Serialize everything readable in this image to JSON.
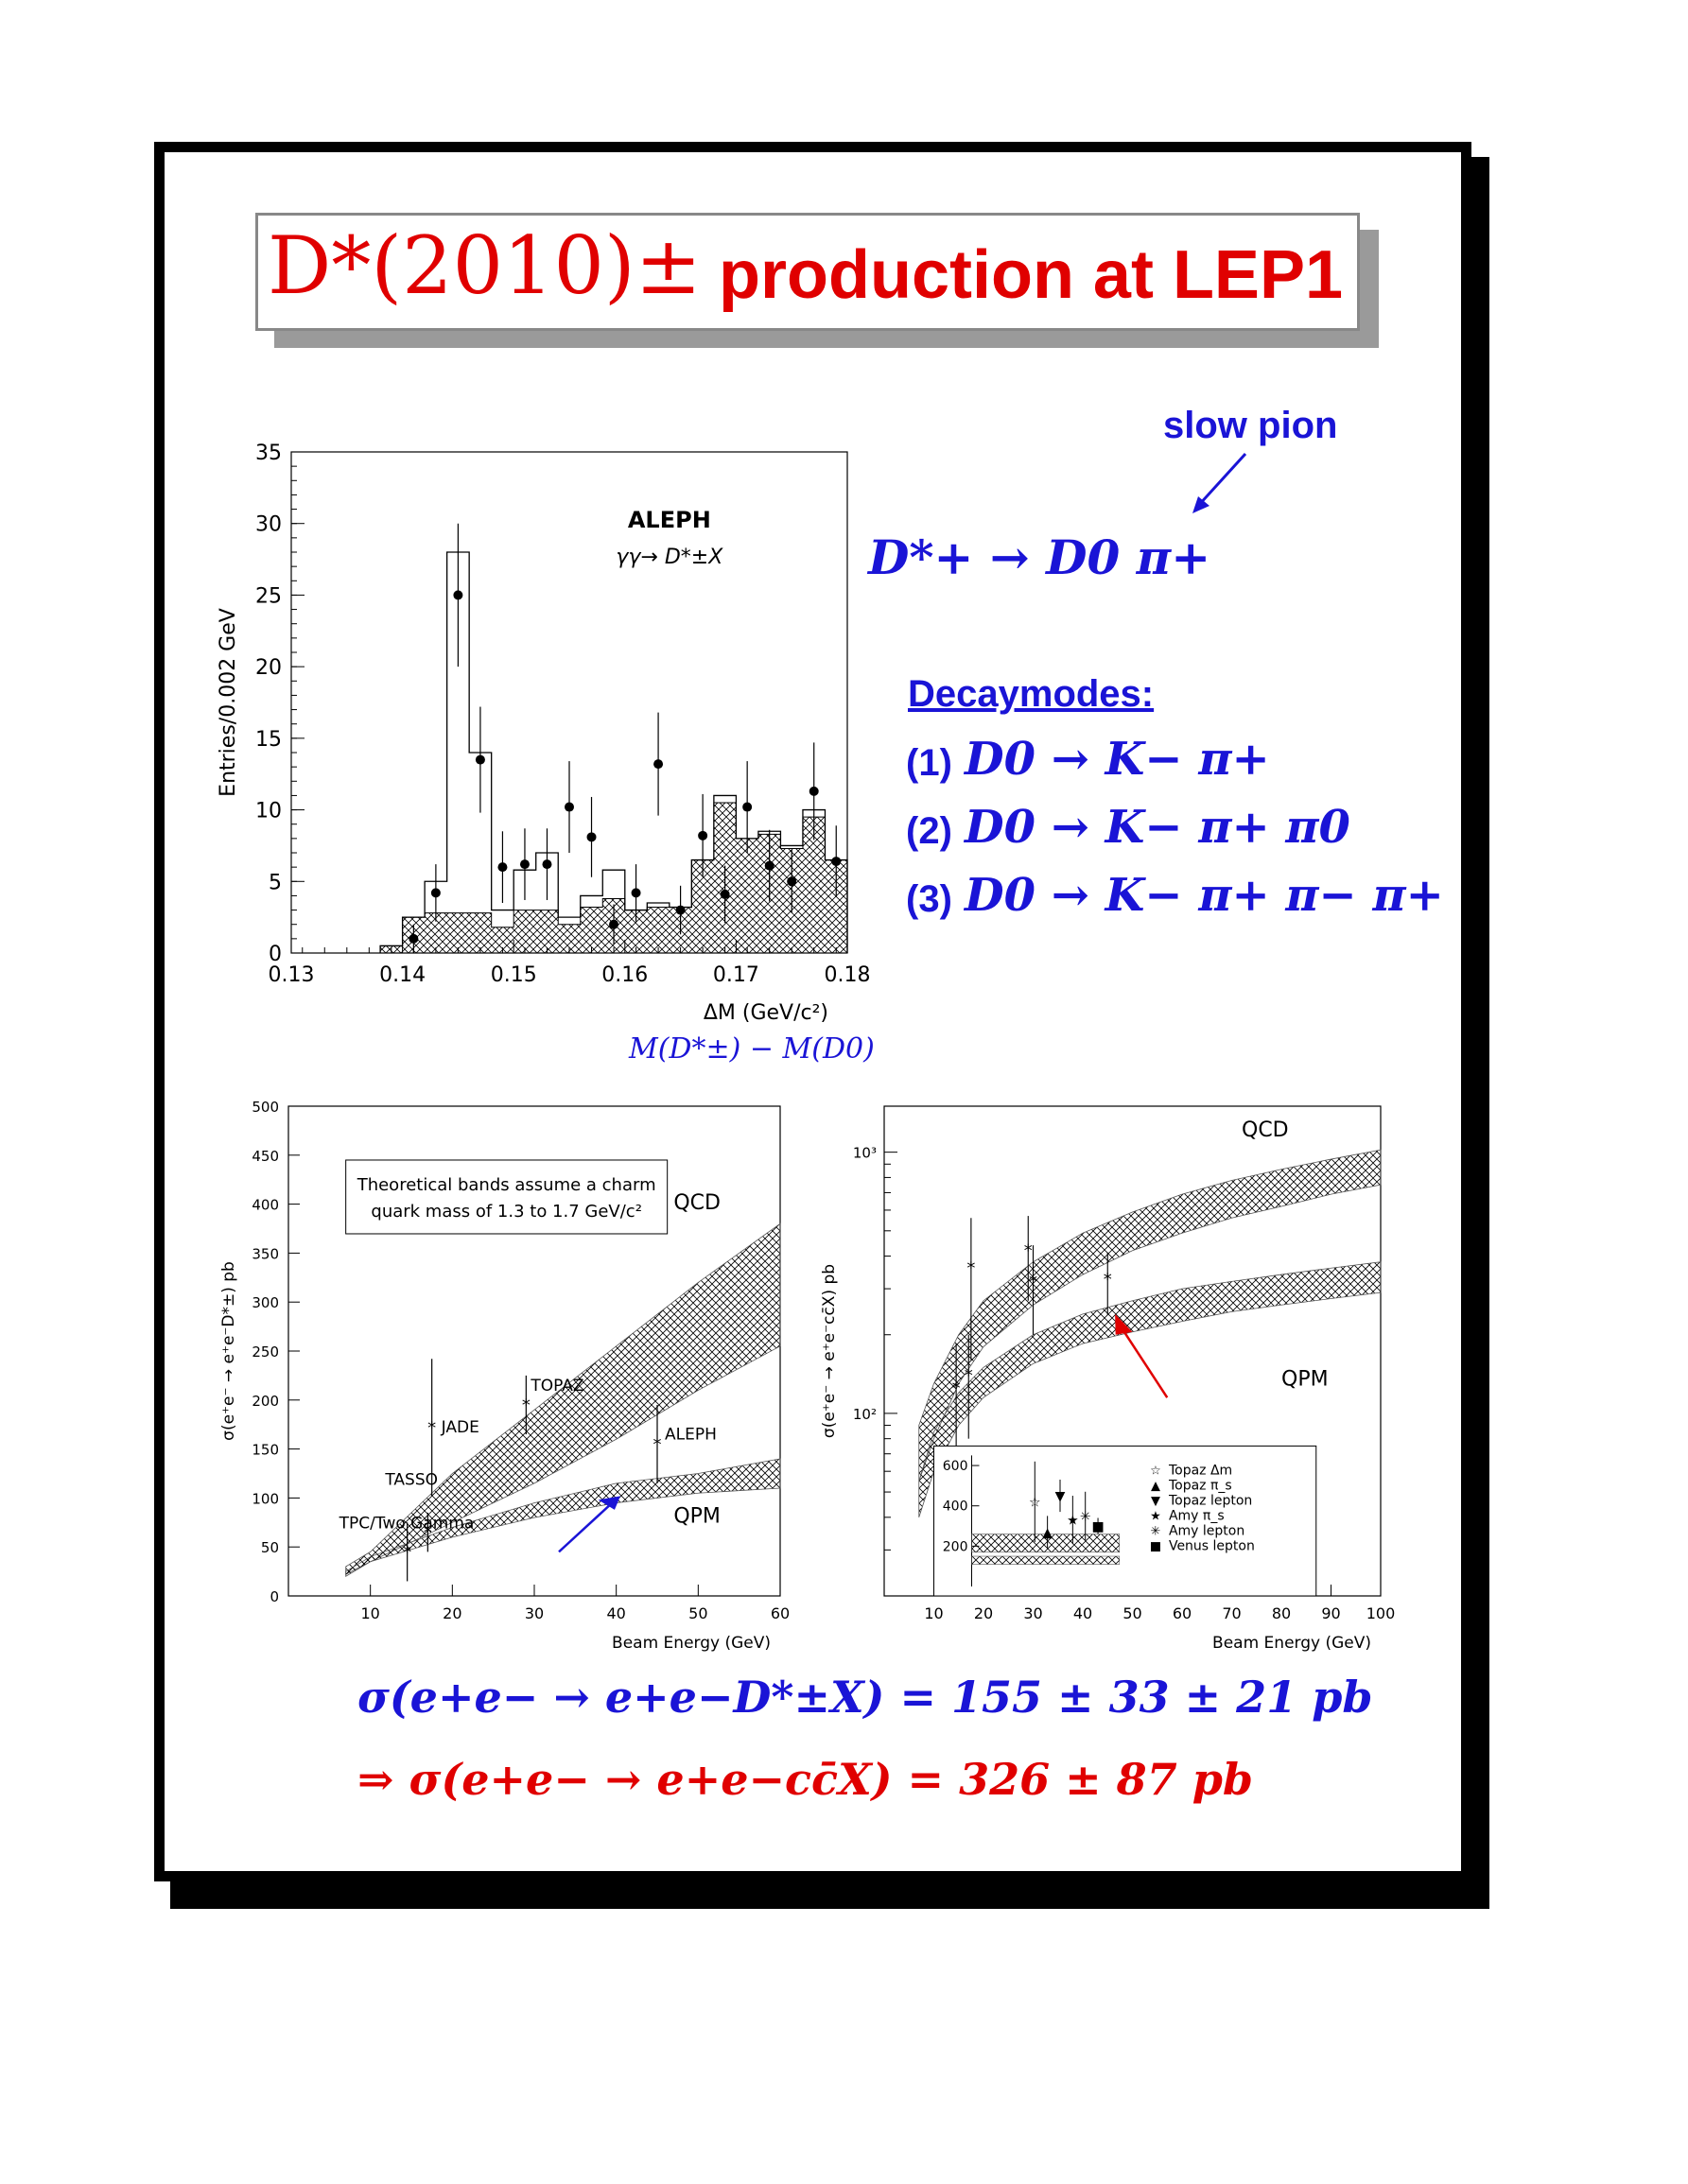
{
  "title": {
    "math": "D*(2010)±",
    "text": "production at LEP1"
  },
  "decay": {
    "slow_pion_label": "slow pion",
    "main_decay": "D*+ → D0 π+",
    "decaymodes_heading": "Decaymodes:",
    "modes": [
      {
        "num": "(1)",
        "expr": "D0 → K− π+"
      },
      {
        "num": "(2)",
        "expr": "D0 → K− π+ π0"
      },
      {
        "num": "(3)",
        "expr": "D0 → K− π+ π− π+"
      }
    ],
    "delta_m_formula": "M(D*±) − M(D0)"
  },
  "results": {
    "line1": "σ(e+e− → e+e−D*±X) = 155 ± 33 ± 21 pb",
    "line2": "⇒  σ(e+e− → e+e−cc̄X) = 326 ± 87 pb"
  },
  "colors": {
    "accent_red": "#e00000",
    "accent_blue": "#1a14d6"
  },
  "chart_data": [
    {
      "type": "bar",
      "title": "ALEPH",
      "subtitle": "γγ→ D*±X",
      "xlabel": "ΔM (GeV/c²)",
      "ylabel": "Entries/0.002 GeV",
      "xlim": [
        0.13,
        0.18
      ],
      "ylim": [
        0,
        35
      ],
      "xticks": [
        0.13,
        0.14,
        0.15,
        0.16,
        0.17,
        0.18
      ],
      "yticks": [
        0,
        5,
        10,
        15,
        20,
        25,
        30,
        35
      ],
      "bin_edges": [
        0.138,
        0.14,
        0.142,
        0.144,
        0.146,
        0.148,
        0.15,
        0.152,
        0.154,
        0.156,
        0.158,
        0.16,
        0.162,
        0.164,
        0.166,
        0.168,
        0.17,
        0.172,
        0.174,
        0.176,
        0.178,
        0.18
      ],
      "series": [
        {
          "style": "open histogram",
          "values": [
            0.5,
            2.5,
            5,
            28,
            14,
            3,
            5.8,
            7,
            2.5,
            4,
            5.8,
            3,
            3.5,
            3.2,
            6.5,
            11,
            8,
            8.5,
            7.5,
            10,
            6.5
          ]
        },
        {
          "style": "hatched histogram",
          "values": [
            0.5,
            2.5,
            2.8,
            2.8,
            2.8,
            1.8,
            3,
            3,
            2,
            3.2,
            3.8,
            3,
            3.2,
            3.2,
            6.5,
            10.5,
            8,
            8.3,
            7.3,
            9.5,
            6.5
          ]
        },
        {
          "style": "data points",
          "x": [
            0.141,
            0.143,
            0.145,
            0.147,
            0.149,
            0.151,
            0.153,
            0.155,
            0.157,
            0.159,
            0.161,
            0.163,
            0.165,
            0.167,
            0.169,
            0.171,
            0.173,
            0.175,
            0.177,
            0.179
          ],
          "y": [
            1,
            4.2,
            25,
            13.5,
            6,
            6.2,
            6.2,
            10.2,
            8.1,
            2,
            4.2,
            13.2,
            3,
            8.2,
            4.1,
            10.2,
            6.1,
            5,
            11.3,
            6.4
          ],
          "err": [
            1.0,
            2.0,
            5.0,
            3.7,
            2.5,
            2.5,
            2.5,
            3.2,
            2.8,
            1.4,
            2.0,
            3.6,
            1.7,
            2.9,
            2.0,
            3.2,
            2.5,
            2.2,
            3.4,
            2.5
          ]
        }
      ]
    },
    {
      "type": "line",
      "xlabel": "Beam Energy (GeV)",
      "ylabel": "σ(e⁺e⁻ → e⁺e⁻D*±) pb",
      "xlim": [
        0,
        60
      ],
      "ylim": [
        0,
        500
      ],
      "xticks": [
        10,
        20,
        30,
        40,
        50,
        60
      ],
      "yticks": [
        0,
        50,
        100,
        150,
        200,
        250,
        300,
        350,
        400,
        450,
        500
      ],
      "note": "Theoretical bands assume a charm quark mass of 1.3 to 1.7 GeV/c²",
      "series": [
        {
          "name": "QCD",
          "x": [
            7,
            10,
            20,
            30,
            40,
            50,
            60
          ],
          "low": [
            22,
            35,
            75,
            115,
            160,
            210,
            255
          ],
          "high": [
            30,
            45,
            125,
            190,
            255,
            320,
            380
          ]
        },
        {
          "name": "QPM",
          "x": [
            7,
            10,
            20,
            30,
            40,
            50,
            60
          ],
          "low": [
            20,
            35,
            60,
            80,
            95,
            105,
            110
          ],
          "high": [
            25,
            40,
            70,
            95,
            115,
            125,
            140
          ]
        },
        {
          "name": "experiments",
          "x": [
            14.5,
            17,
            17.5,
            29,
            45
          ],
          "y": [
            45,
            65,
            172,
            195,
            155
          ],
          "err": [
            30,
            20,
            70,
            30,
            40
          ],
          "labels": [
            "TPC/Two Gamma",
            "TASSO",
            "JADE",
            "TOPAZ",
            "ALEPH"
          ]
        }
      ],
      "band_labels": [
        "QCD",
        "QPM"
      ]
    },
    {
      "type": "line",
      "xlabel": "Beam Energy (GeV)",
      "ylabel": "σ(e⁺e⁻ → e⁺e⁻cc̄X) pb",
      "xlim": [
        0,
        100
      ],
      "ylim": [
        20,
        1500
      ],
      "log_y": true,
      "xticks": [
        10,
        20,
        30,
        40,
        50,
        60,
        70,
        80,
        90,
        100
      ],
      "ytick_labels": [
        "10²",
        "10³"
      ],
      "band_labels": [
        "QCD",
        "QPM"
      ],
      "series": [
        {
          "name": "QCD",
          "x": [
            7,
            10,
            15,
            20,
            30,
            40,
            50,
            60,
            70,
            80,
            90,
            100
          ],
          "low": [
            55,
            80,
            130,
            180,
            260,
            340,
            420,
            490,
            560,
            620,
            690,
            750
          ],
          "high": [
            90,
            130,
            200,
            270,
            380,
            490,
            590,
            690,
            780,
            860,
            940,
            1020
          ]
        },
        {
          "name": "QPM",
          "x": [
            7,
            10,
            15,
            20,
            30,
            40,
            50,
            60,
            70,
            80,
            90,
            100
          ],
          "low": [
            40,
            60,
            90,
            115,
            155,
            185,
            205,
            225,
            245,
            260,
            275,
            290
          ],
          "high": [
            55,
            85,
            120,
            150,
            200,
            240,
            270,
            300,
            320,
            340,
            360,
            380
          ]
        },
        {
          "name": "data",
          "x": [
            14.5,
            17,
            17.5,
            29,
            30,
            45
          ],
          "y": [
            125,
            140,
            360,
            420,
            320,
            326
          ],
          "err": [
            60,
            60,
            200,
            150,
            120,
            87
          ]
        }
      ],
      "inset": {
        "xlim": [
          0,
          60
        ],
        "ylim": [
          0,
          650
        ],
        "yticks": [
          200,
          400,
          600
        ],
        "legend": [
          "Topaz Δm",
          "Topaz π_s",
          "Topaz lepton",
          "Amy  π_s",
          "Amy  lepton",
          "Venus lepton"
        ],
        "points": {
          "x": [
            25,
            30,
            35,
            40,
            45,
            50
          ],
          "y": [
            420,
            270,
            450,
            330,
            350,
            300
          ],
          "err": [
            200,
            80,
            80,
            120,
            120,
            40
          ]
        }
      }
    }
  ]
}
